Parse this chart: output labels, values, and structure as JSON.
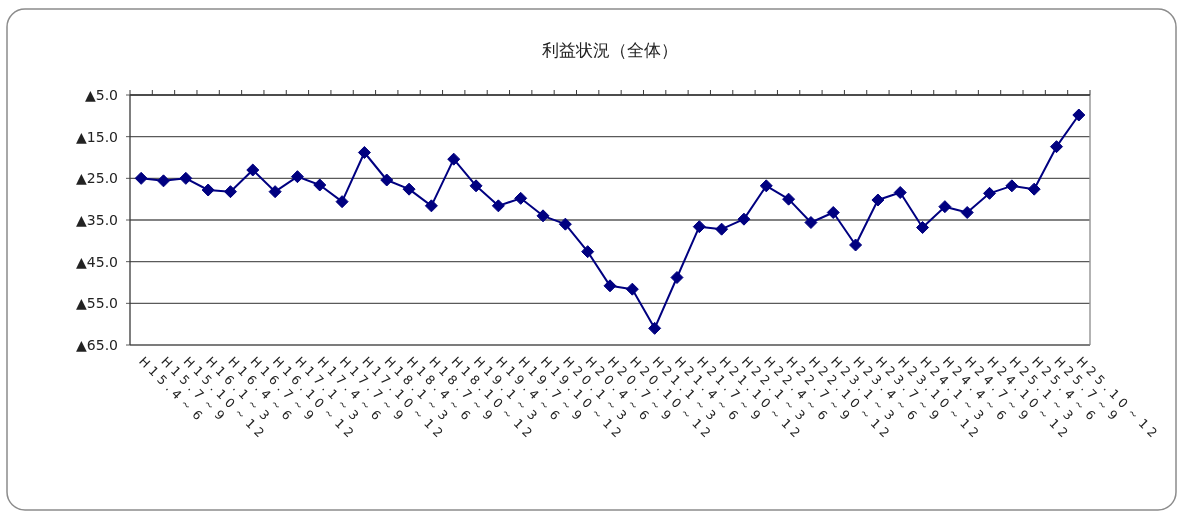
{
  "chart_data": {
    "type": "line",
    "title": "利益状況（全体）",
    "categories": [
      "H15.4～6",
      "H15.7～9",
      "H15.10～12",
      "H16.1～3",
      "H16.4～6",
      "H16.7～9",
      "H16.10～12",
      "H17.1～3",
      "H17.4～6",
      "H17.7～9",
      "H17.10～12",
      "H18.1～3",
      "H18.4～6",
      "H18.7～9",
      "H18.10～12",
      "H19.1～3",
      "H19.4～6",
      "H19.7～9",
      "H19.10～12",
      "H20.1～3",
      "H20.4～6",
      "H20.7～9",
      "H20.10～12",
      "H21.1～3",
      "H21.4～6",
      "H21.7～9",
      "H21.10～12",
      "H22.1～3",
      "H22.4～6",
      "H22.7～9",
      "H22.10～12",
      "H23.1～3",
      "H23.4～6",
      "H23.7～9",
      "H23.10～12",
      "H24.1～3",
      "H24.4～6",
      "H24.7～9",
      "H24.10～12",
      "H25.1～3",
      "H25.4～6",
      "H25.7～9",
      "H25.10～12"
    ],
    "series": [
      {
        "color": "#000080",
        "values": [
          -25.0,
          -25.6,
          -25.0,
          -27.8,
          -28.2,
          -23.0,
          -28.2,
          -24.6,
          -26.6,
          -30.6,
          -18.8,
          -25.4,
          -27.6,
          -31.6,
          -20.4,
          -26.8,
          -31.6,
          -29.8,
          -34.0,
          -36.0,
          -42.6,
          -50.8,
          -51.6,
          -61.0,
          -48.8,
          -36.6,
          -37.2,
          -34.8,
          -26.8,
          -30.0,
          -35.6,
          -33.2,
          -41.0,
          -30.2,
          -28.4,
          -36.8,
          -31.8,
          -33.2,
          -28.6,
          -26.8,
          -27.6,
          -17.4,
          -9.8
        ]
      }
    ],
    "ylim": [
      -65,
      -5
    ],
    "yticks": [
      {
        "value": -5,
        "label": "▲5.0"
      },
      {
        "value": -15,
        "label": "▲15.0"
      },
      {
        "value": -25,
        "label": "▲25.0"
      },
      {
        "value": -35,
        "label": "▲35.0"
      },
      {
        "value": -45,
        "label": "▲45.0"
      },
      {
        "value": -55,
        "label": "▲55.0"
      },
      {
        "value": -65,
        "label": "▲65.0"
      }
    ],
    "grid": "y",
    "marker": "diamond",
    "line_style": "solid"
  }
}
